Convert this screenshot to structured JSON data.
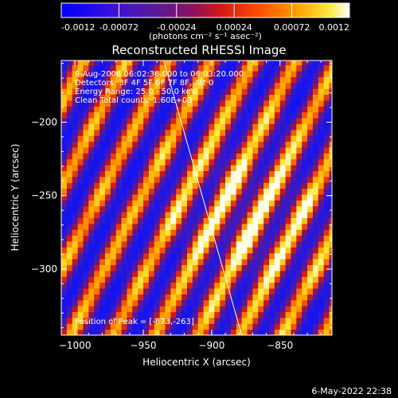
{
  "chart_data": {
    "type": "heatmap",
    "title": "Reconstructed RHESSI Image",
    "xlabel": "Heliocentric X (arcsec)",
    "ylabel": "Heliocentric Y (arcsec)",
    "xlim": [
      -1010,
      -812
    ],
    "ylim": [
      -345,
      -158
    ],
    "xticks": [
      -1000,
      -950,
      -900,
      -850
    ],
    "yticks": [
      -200,
      -250,
      -300
    ],
    "colorbar": {
      "min": -0.0012,
      "max": 0.0012,
      "ticks": [
        "-0.0012",
        "-0.00072",
        "-0.00024",
        "0.00024",
        "0.00072",
        "0.0012"
      ],
      "units": "(photons cm⁻² s⁻¹ asec⁻²)",
      "colormap": "blue-purple-red-yellow-white"
    },
    "annotations": {
      "time": "9-Aug-2006 06:02:36.000 to 06:03:20.000",
      "detectors": "Detectors: 3F 4F 5F 6F 7F 8F, Att 0",
      "energy": "Energy Range: 25.0 - 50.0 keV",
      "clean": "Clean    Total counts: 1.60E+03",
      "peak": "Position of Peak = [-873,-263]"
    },
    "limb_line": {
      "x": [
        -935,
        -878
      ],
      "y": [
        -158,
        -345
      ]
    },
    "stripe_pattern": {
      "direction": "diagonal, upper-right to lower-left bands",
      "bright_bands": 4,
      "peak_xy": [
        -873,
        -263
      ]
    }
  },
  "footer": {
    "date": "6-May-2022 22:38"
  },
  "colors": {
    "background": "#000000",
    "blue": "#1a1aff",
    "purple": "#6a1ccc",
    "dark_purple": "#2a0066",
    "red": "#e0201a",
    "orange": "#ff9000",
    "yellow": "#ffee30",
    "white": "#ffffff"
  }
}
